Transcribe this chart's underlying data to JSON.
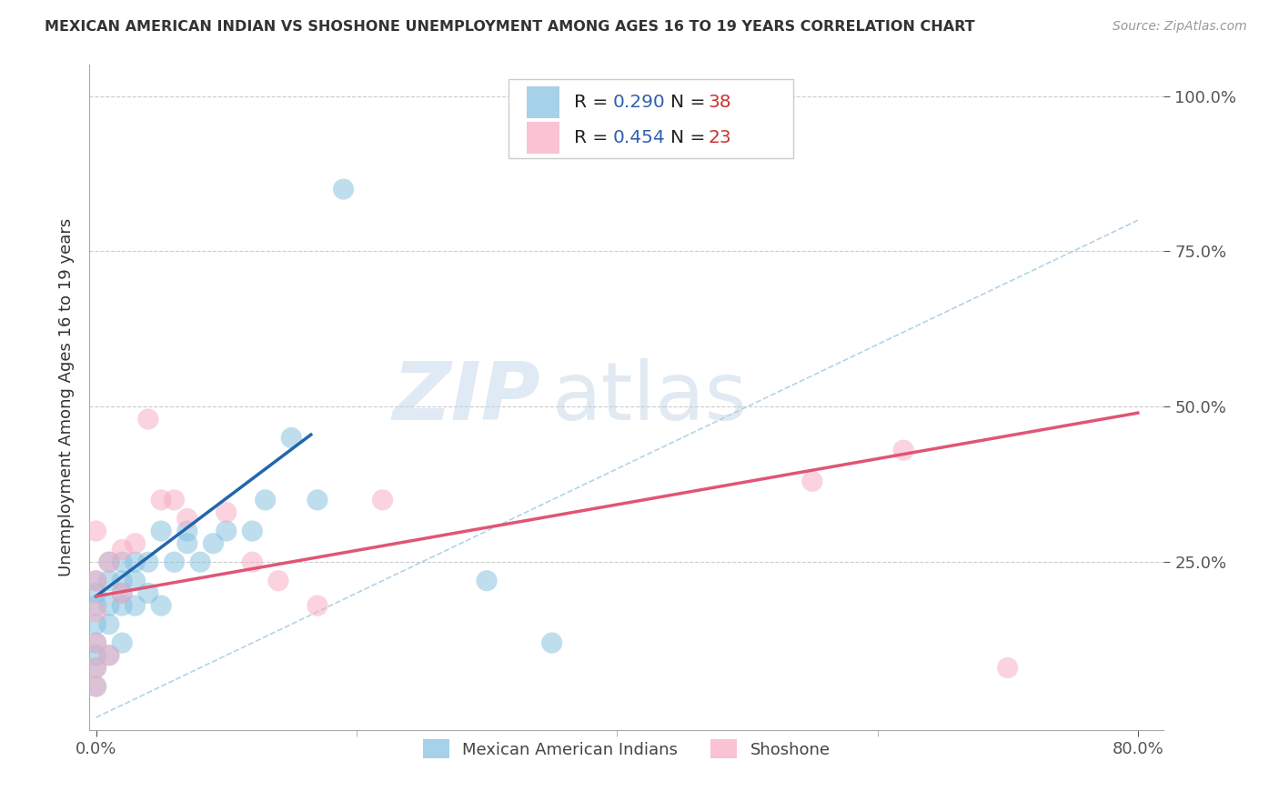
{
  "title": "MEXICAN AMERICAN INDIAN VS SHOSHONE UNEMPLOYMENT AMONG AGES 16 TO 19 YEARS CORRELATION CHART",
  "source": "Source: ZipAtlas.com",
  "ylabel": "Unemployment Among Ages 16 to 19 years",
  "xlim": [
    0.0,
    0.8
  ],
  "ylim": [
    0.0,
    1.05
  ],
  "xticks": [
    0.0,
    0.8
  ],
  "xticklabels": [
    "0.0%",
    "80.0%"
  ],
  "ytick_positions": [
    0.25,
    0.5,
    0.75,
    1.0
  ],
  "ytick_labels": [
    "25.0%",
    "50.0%",
    "75.0%",
    "100.0%"
  ],
  "legend_r1": "0.290",
  "legend_n1": "38",
  "legend_r2": "0.454",
  "legend_n2": "23",
  "color_blue": "#7fbfdf",
  "color_pink": "#f9a8c0",
  "color_line_blue": "#2166ac",
  "color_line_pink": "#e05575",
  "color_diag": "#9ecae1",
  "watermark_zip": "ZIP",
  "watermark_atlas": "atlas",
  "background": "#ffffff",
  "mexican_x": [
    0.0,
    0.0,
    0.0,
    0.0,
    0.0,
    0.0,
    0.0,
    0.0,
    0.01,
    0.01,
    0.01,
    0.01,
    0.01,
    0.02,
    0.02,
    0.02,
    0.02,
    0.02,
    0.03,
    0.03,
    0.03,
    0.04,
    0.04,
    0.05,
    0.05,
    0.06,
    0.07,
    0.07,
    0.08,
    0.09,
    0.1,
    0.12,
    0.13,
    0.15,
    0.17,
    0.19,
    0.3,
    0.35
  ],
  "mexican_y": [
    0.05,
    0.08,
    0.1,
    0.12,
    0.15,
    0.18,
    0.2,
    0.22,
    0.1,
    0.15,
    0.18,
    0.22,
    0.25,
    0.12,
    0.18,
    0.2,
    0.22,
    0.25,
    0.18,
    0.22,
    0.25,
    0.2,
    0.25,
    0.18,
    0.3,
    0.25,
    0.28,
    0.3,
    0.25,
    0.28,
    0.3,
    0.3,
    0.35,
    0.45,
    0.35,
    0.85,
    0.22,
    0.12
  ],
  "shoshone_x": [
    0.0,
    0.0,
    0.0,
    0.0,
    0.0,
    0.0,
    0.01,
    0.01,
    0.02,
    0.02,
    0.03,
    0.04,
    0.05,
    0.06,
    0.07,
    0.1,
    0.12,
    0.14,
    0.17,
    0.22,
    0.55,
    0.62,
    0.7
  ],
  "shoshone_y": [
    0.05,
    0.08,
    0.12,
    0.17,
    0.22,
    0.3,
    0.1,
    0.25,
    0.2,
    0.27,
    0.28,
    0.48,
    0.35,
    0.35,
    0.32,
    0.33,
    0.25,
    0.22,
    0.18,
    0.35,
    0.38,
    0.43,
    0.08
  ],
  "blue_trend_x": [
    0.0,
    0.165
  ],
  "blue_trend_y": [
    0.195,
    0.455
  ],
  "pink_trend_x": [
    0.0,
    0.8
  ],
  "pink_trend_y": [
    0.195,
    0.49
  ]
}
